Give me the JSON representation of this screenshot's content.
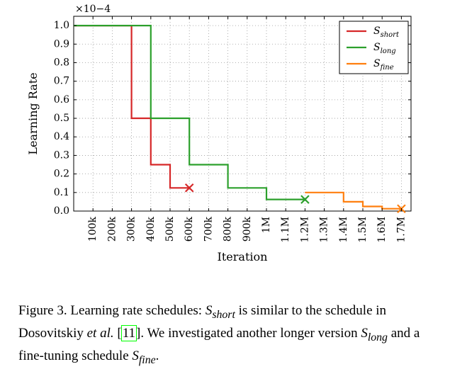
{
  "chart_data": {
    "type": "line",
    "title": "",
    "xlabel": "Iteration",
    "ylabel": "Learning Rate",
    "scale_note": "×10−4",
    "xlim": [
      0,
      1750000
    ],
    "ylim": [
      0.0,
      1.05
    ],
    "grid": true,
    "legend_position": "top-right",
    "x_ticks": [
      {
        "value": 100000,
        "label": "100k"
      },
      {
        "value": 200000,
        "label": "200k"
      },
      {
        "value": 300000,
        "label": "300k"
      },
      {
        "value": 400000,
        "label": "400k"
      },
      {
        "value": 500000,
        "label": "500k"
      },
      {
        "value": 600000,
        "label": "600k"
      },
      {
        "value": 700000,
        "label": "700k"
      },
      {
        "value": 800000,
        "label": "800k"
      },
      {
        "value": 900000,
        "label": "900k"
      },
      {
        "value": 1000000,
        "label": "1M"
      },
      {
        "value": 1100000,
        "label": "1.1M"
      },
      {
        "value": 1200000,
        "label": "1.2M"
      },
      {
        "value": 1300000,
        "label": "1.3M"
      },
      {
        "value": 1400000,
        "label": "1.4M"
      },
      {
        "value": 1500000,
        "label": "1.5M"
      },
      {
        "value": 1600000,
        "label": "1.6M"
      },
      {
        "value": 1700000,
        "label": "1.7M"
      }
    ],
    "y_ticks": [
      {
        "value": 0.0,
        "label": "0.0"
      },
      {
        "value": 0.1,
        "label": "0.1"
      },
      {
        "value": 0.2,
        "label": "0.2"
      },
      {
        "value": 0.3,
        "label": "0.3"
      },
      {
        "value": 0.4,
        "label": "0.4"
      },
      {
        "value": 0.5,
        "label": "0.5"
      },
      {
        "value": 0.6,
        "label": "0.6"
      },
      {
        "value": 0.7,
        "label": "0.7"
      },
      {
        "value": 0.8,
        "label": "0.8"
      },
      {
        "value": 0.9,
        "label": "0.9"
      },
      {
        "value": 1.0,
        "label": "1.0"
      }
    ],
    "series": [
      {
        "name": "S",
        "name_sub": "short",
        "color": "#d62728",
        "points": [
          [
            0,
            1.0
          ],
          [
            300000,
            1.0
          ],
          [
            300000,
            0.5
          ],
          [
            400000,
            0.5
          ],
          [
            400000,
            0.25
          ],
          [
            500000,
            0.25
          ],
          [
            500000,
            0.125
          ],
          [
            600000,
            0.125
          ]
        ],
        "end_marker": [
          600000,
          0.125
        ]
      },
      {
        "name": "S",
        "name_sub": "long",
        "color": "#2ca02c",
        "points": [
          [
            0,
            1.0
          ],
          [
            400000,
            1.0
          ],
          [
            400000,
            0.5
          ],
          [
            600000,
            0.5
          ],
          [
            600000,
            0.25
          ],
          [
            800000,
            0.25
          ],
          [
            800000,
            0.125
          ],
          [
            1000000,
            0.125
          ],
          [
            1000000,
            0.0625
          ],
          [
            1200000,
            0.0625
          ]
        ],
        "end_marker": [
          1200000,
          0.0625
        ]
      },
      {
        "name": "S",
        "name_sub": "fine",
        "color": "#ff7f0e",
        "points": [
          [
            1200000,
            0.1
          ],
          [
            1400000,
            0.1
          ],
          [
            1400000,
            0.05
          ],
          [
            1500000,
            0.05
          ],
          [
            1500000,
            0.025
          ],
          [
            1600000,
            0.025
          ],
          [
            1600000,
            0.0125
          ],
          [
            1700000,
            0.0125
          ]
        ],
        "end_marker": [
          1700000,
          0.0125
        ]
      }
    ]
  },
  "caption": {
    "prefix": "Figure 3. Learning rate schedules: ",
    "s_short": "S",
    "s_short_sub": "short",
    "part2": " is similar to the schedule in Dosovitskiy ",
    "etal": "et al.",
    "ref_open": " [",
    "ref": "11",
    "ref_close": "]",
    "part3": ". We investigated another longer version ",
    "s_long": "S",
    "s_long_sub": "long",
    "part4": " and a fine-tuning schedule ",
    "s_fine": "S",
    "s_fine_sub": "fine",
    "suffix": "."
  }
}
